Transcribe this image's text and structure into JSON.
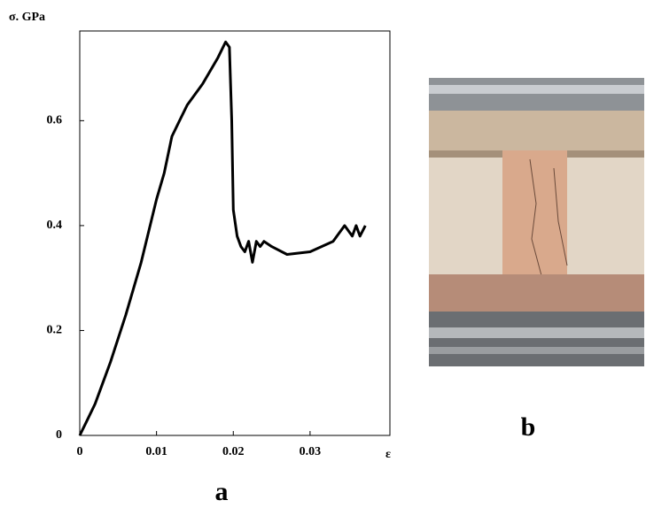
{
  "chart_data": {
    "type": "line",
    "ylabel": "σ. GPa",
    "xlabel": "ε",
    "panel_labels": [
      "a",
      "b"
    ],
    "x": [
      0,
      0.001,
      0.002,
      0.003,
      0.004,
      0.006,
      0.008,
      0.01,
      0.011,
      0.012,
      0.013,
      0.014,
      0.016,
      0.018,
      0.019,
      0.0195,
      0.0198,
      0.02,
      0.0205,
      0.021,
      0.0215,
      0.022,
      0.0225,
      0.023,
      0.0235,
      0.024,
      0.025,
      0.027,
      0.03,
      0.033,
      0.0345,
      0.0355,
      0.036,
      0.0365,
      0.0372
    ],
    "values": [
      0,
      0.03,
      0.06,
      0.1,
      0.14,
      0.23,
      0.33,
      0.45,
      0.5,
      0.57,
      0.6,
      0.63,
      0.67,
      0.72,
      0.75,
      0.74,
      0.6,
      0.43,
      0.38,
      0.36,
      0.35,
      0.37,
      0.33,
      0.37,
      0.36,
      0.37,
      0.36,
      0.345,
      0.35,
      0.37,
      0.4,
      0.38,
      0.4,
      0.38,
      0.4
    ],
    "color": "#000000",
    "xlim": [
      0,
      0.0404
    ],
    "ylim": [
      0,
      0.771
    ],
    "xticks": [
      0,
      0.01,
      0.02,
      0.03
    ],
    "yticks": [
      0,
      0.2,
      0.4,
      0.6
    ]
  }
}
